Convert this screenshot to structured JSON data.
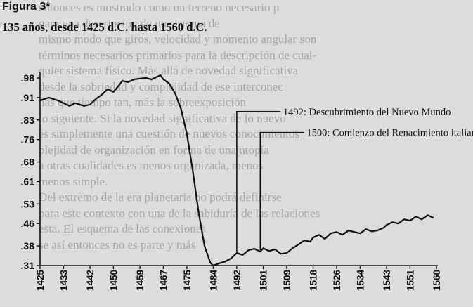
{
  "page": {
    "figure_label": "Figura 3*",
    "subtitle": "135 años, desde 1425 d.C. hasta 1560 d.C.",
    "background_text": [
      "entonces es mostrado como un terreno necesario p",
      "para una descripción de un sistema de",
      "mismo modo que giros, velocidad y momento angular son",
      "términos necesarios primarios para la descripción de cual-",
      "quier sistema físico. Más allá de novedad significativa",
      "desde la sobriedad y complejidad de ese interconec",
      "nas que tiempo tan, más la sobreexposición",
      "lo siguiente. Si la novedad significativa de lo nuevo",
      "es simplemente una cuestión de nuevos conocimientos",
      "plejidad de organización en forma de una utopía",
      "a otras cualidades es menos organizada, menos",
      "menos simple.",
      "   Del extremo de la era planetaria no podrá definirse",
      "para este contexto con una de la sabiduría de las relaciones",
      "esta. El esquema de las conexiones",
      "se así entonces no es parte y más"
    ]
  },
  "chart_data": {
    "type": "line",
    "title": "135 años, desde 1425 d.C. hasta 1560 d.C.",
    "xlabel": "",
    "ylabel": "",
    "xlim": [
      1425,
      1560
    ],
    "ylim": [
      0.31,
      1.0
    ],
    "x_ticks": [
      1425,
      1433,
      1442,
      1450,
      1459,
      1467,
      1475,
      1484,
      1492,
      1501,
      1509,
      1518,
      1526,
      1534,
      1543,
      1551,
      1560
    ],
    "y_ticks": [
      0.31,
      0.38,
      0.46,
      0.53,
      0.61,
      0.68,
      0.76,
      0.83,
      0.91,
      0.98
    ],
    "y_tick_labels": [
      ".31",
      ".38",
      ".46",
      ".53",
      ".61",
      ".68",
      ".76",
      ".83",
      ".91",
      ".98"
    ],
    "grid": false,
    "line_color": "#111111",
    "series": [
      {
        "x": [
          1425,
          1428,
          1431,
          1433,
          1435,
          1437,
          1440,
          1442,
          1444,
          1446,
          1448,
          1450,
          1452,
          1453,
          1455,
          1457,
          1459,
          1461,
          1463,
          1465,
          1466,
          1467,
          1469,
          1471,
          1473,
          1475,
          1477,
          1479,
          1481,
          1483,
          1484,
          1486,
          1488,
          1490,
          1491,
          1492,
          1494,
          1496,
          1498,
          1500,
          1501,
          1503,
          1505,
          1507,
          1509,
          1511,
          1513,
          1515,
          1517,
          1518,
          1520,
          1522,
          1524,
          1526,
          1528,
          1530,
          1532,
          1534,
          1536,
          1538,
          1540,
          1542,
          1543,
          1545,
          1547,
          1549,
          1551,
          1553,
          1555,
          1557,
          1559
        ],
        "y": [
          0.9,
          0.91,
          0.9,
          0.89,
          0.88,
          0.89,
          0.88,
          0.885,
          0.905,
          0.92,
          0.94,
          0.93,
          0.955,
          0.97,
          0.965,
          0.975,
          0.978,
          0.98,
          0.975,
          0.985,
          0.99,
          0.975,
          0.96,
          0.925,
          0.87,
          0.78,
          0.65,
          0.5,
          0.38,
          0.32,
          0.31,
          0.318,
          0.324,
          0.335,
          0.345,
          0.355,
          0.348,
          0.365,
          0.37,
          0.36,
          0.372,
          0.362,
          0.368,
          0.352,
          0.355,
          0.372,
          0.385,
          0.4,
          0.395,
          0.41,
          0.42,
          0.405,
          0.425,
          0.43,
          0.42,
          0.435,
          0.43,
          0.425,
          0.44,
          0.432,
          0.436,
          0.445,
          0.455,
          0.465,
          0.46,
          0.475,
          0.47,
          0.485,
          0.475,
          0.49,
          0.48
        ]
      }
    ],
    "annotations": [
      {
        "x": 1492,
        "text": "1492: Descubrimiento del Nuevo Mundo",
        "label_y": 0.86
      },
      {
        "x": 1500,
        "text": "1500: Comienzo del Renacimiento italiano",
        "label_y": 0.785
      }
    ]
  }
}
